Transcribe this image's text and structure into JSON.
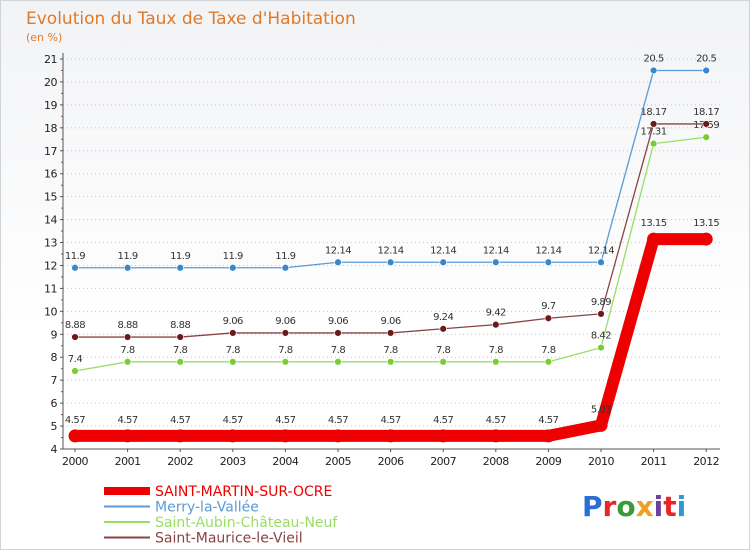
{
  "header": {
    "title": "Evolution du Taux de Taxe d'Habitation",
    "subtitle": "(en %)"
  },
  "logo": {
    "text": "Proxiti",
    "letter_colors": [
      "#2b6fd6",
      "#e8262a",
      "#3a9a3a",
      "#f0a020",
      "#6c3fa0",
      "#e8262a",
      "#2b9ad6"
    ]
  },
  "chart_data": {
    "type": "line",
    "title": "Evolution du Taux de Taxe d'Habitation",
    "ylabel": "(en %)",
    "xlabel": "",
    "ylim": [
      4,
      21
    ],
    "yticks": [
      4,
      5,
      6,
      7,
      8,
      9,
      10,
      11,
      12,
      13,
      14,
      15,
      16,
      17,
      18,
      19,
      20,
      21
    ],
    "categories": [
      "2000",
      "2001",
      "2002",
      "2003",
      "2004",
      "2005",
      "2006",
      "2007",
      "2008",
      "2009",
      "2010",
      "2011",
      "2012"
    ],
    "legend_position": "bottom-left",
    "grid": "y dotted",
    "series": [
      {
        "name": "Saint-Aubin-Château-Neuf",
        "color": "#99dd66",
        "marker": "#7acc33",
        "values": [
          7.4,
          7.8,
          7.8,
          7.8,
          7.8,
          7.8,
          7.8,
          7.8,
          7.8,
          7.8,
          8.42,
          17.31,
          17.59
        ],
        "labels": [
          "7.4",
          "7.8",
          "7.8",
          "7.8",
          "7.8",
          "7.8",
          "7.8",
          "7.8",
          "7.8",
          "7.8",
          "8.42",
          "17.31",
          "17.59"
        ]
      },
      {
        "name": "Saint-Maurice-le-Vieil",
        "color": "#884444",
        "marker": "#6a1a1a",
        "values": [
          8.88,
          8.88,
          8.88,
          9.06,
          9.06,
          9.06,
          9.06,
          9.24,
          9.42,
          9.7,
          9.89,
          18.17,
          18.17
        ],
        "labels": [
          "8.88",
          "8.88",
          "8.88",
          "9.06",
          "9.06",
          "9.06",
          "9.06",
          "9.24",
          "9.42",
          "9.7",
          "9.89",
          "18.17",
          "18.17"
        ]
      },
      {
        "name": "Merry-la-Vallée",
        "color": "#5b9bd5",
        "marker": "#3a86c8",
        "values": [
          11.9,
          11.9,
          11.9,
          11.9,
          11.9,
          12.14,
          12.14,
          12.14,
          12.14,
          12.14,
          12.14,
          20.5,
          20.5
        ],
        "labels": [
          "11.9",
          "11.9",
          "11.9",
          "11.9",
          "11.9",
          "12.14",
          "12.14",
          "12.14",
          "12.14",
          "12.14",
          "12.14",
          "20.5",
          "20.5"
        ]
      },
      {
        "name": "SAINT-MARTIN-SUR-OCRE",
        "color": "#ee0000",
        "marker": "#ee0000",
        "thick": true,
        "values": [
          4.57,
          4.57,
          4.57,
          4.57,
          4.57,
          4.57,
          4.57,
          4.57,
          4.57,
          4.57,
          5.03,
          13.15,
          13.15
        ],
        "labels": [
          "4.57",
          "4.57",
          "4.57",
          "4.57",
          "4.57",
          "4.57",
          "4.57",
          "4.57",
          "4.57",
          "4.57",
          "5.03",
          "13.15",
          "13.15"
        ]
      }
    ],
    "legend": [
      {
        "name": "SAINT-MARTIN-SUR-OCRE",
        "color": "#ee0000",
        "thick": true
      },
      {
        "name": "Merry-la-Vallée",
        "color": "#5b9bd5"
      },
      {
        "name": "Saint-Aubin-Château-Neuf",
        "color": "#99dd66"
      },
      {
        "name": "Saint-Maurice-le-Vieil",
        "color": "#884444"
      }
    ]
  }
}
